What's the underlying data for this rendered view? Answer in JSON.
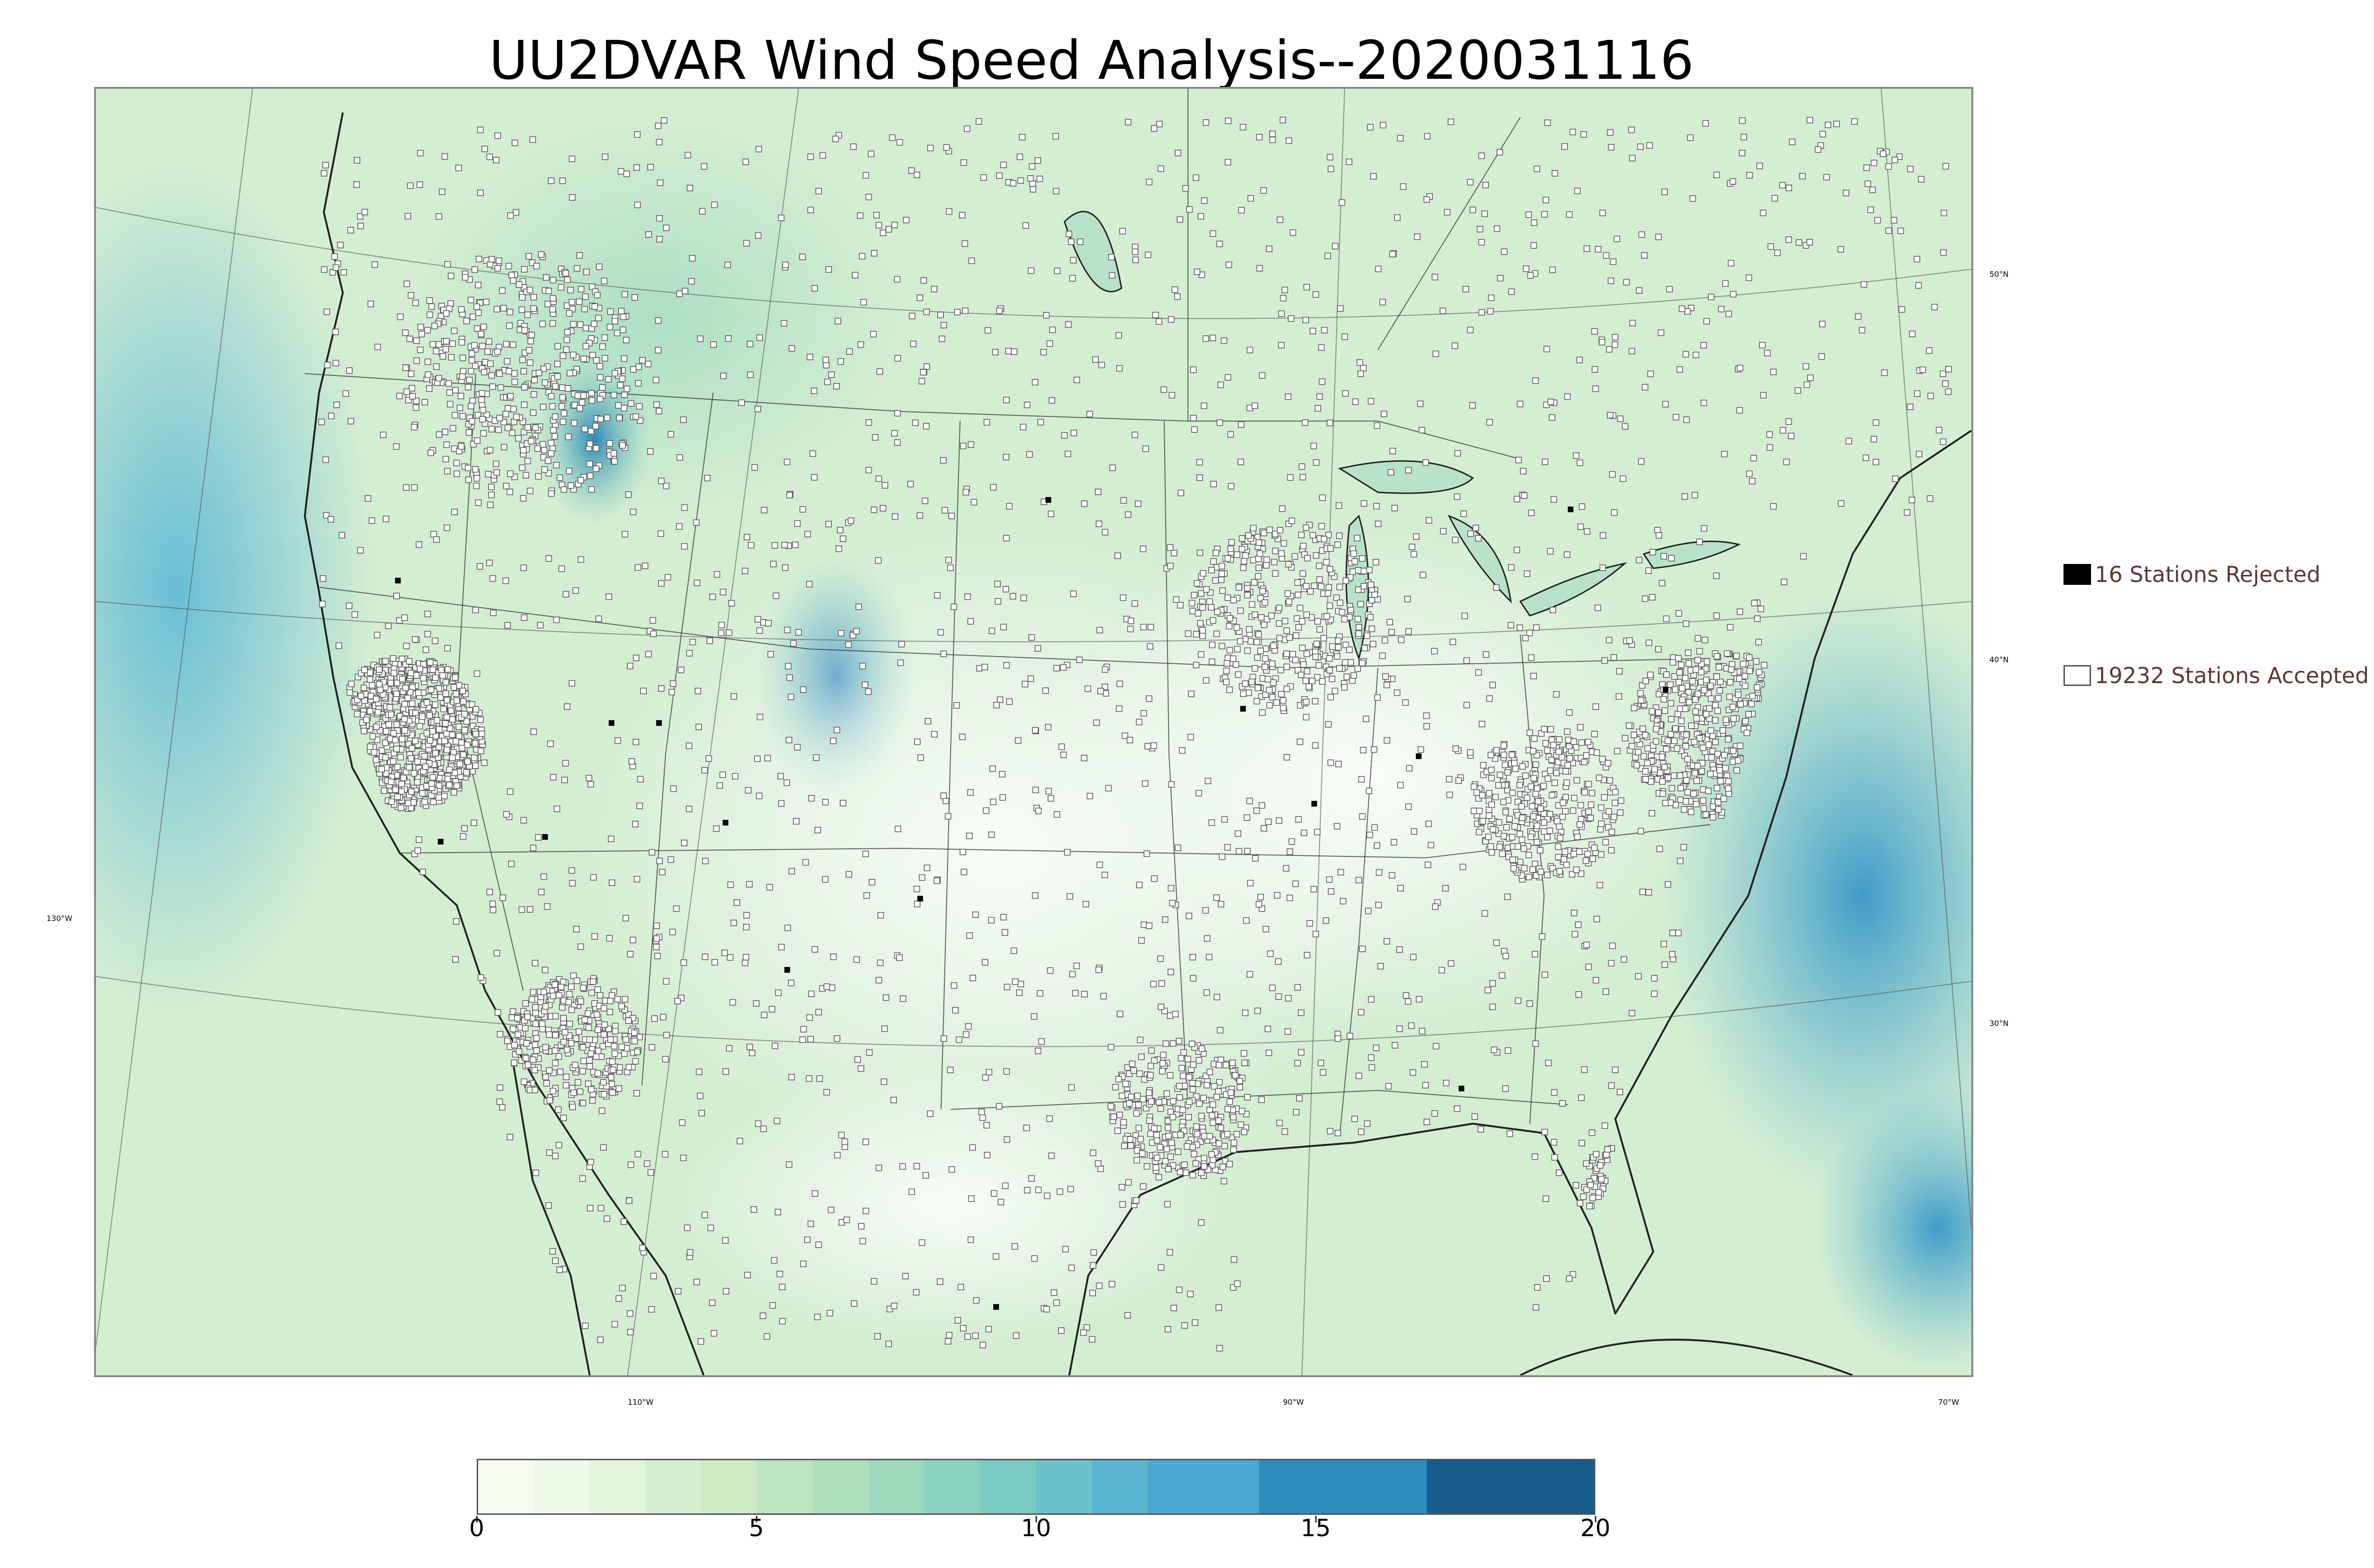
{
  "title": "UU2DVAR Wind Speed Analysis--2020031116",
  "legend": {
    "rejected_label": "16 Stations Rejected",
    "rejected_count": 16,
    "accepted_label": "19232 Stations Accepted",
    "accepted_count": 19232
  },
  "lat_labels": [
    "50°N",
    "40°N",
    "30°N"
  ],
  "lon_labels": [
    "130°W",
    "110°W",
    "90°W",
    "70°W"
  ],
  "colorbar": {
    "ticks": [
      "0",
      "5",
      "10",
      "15",
      "20"
    ],
    "min": 0,
    "max": 20,
    "segments": [
      {
        "from": 0,
        "to": 1,
        "color": "#f7fcf0"
      },
      {
        "from": 1,
        "to": 2,
        "color": "#eef8e7"
      },
      {
        "from": 2,
        "to": 3,
        "color": "#e2f4dc"
      },
      {
        "from": 3,
        "to": 4,
        "color": "#d6efd0"
      },
      {
        "from": 4,
        "to": 5,
        "color": "#cbebc5"
      },
      {
        "from": 5,
        "to": 6,
        "color": "#bde5bf"
      },
      {
        "from": 6,
        "to": 7,
        "color": "#addfbb"
      },
      {
        "from": 7,
        "to": 8,
        "color": "#9cd9bd"
      },
      {
        "from": 8,
        "to": 9,
        "color": "#8cd2c0"
      },
      {
        "from": 9,
        "to": 10,
        "color": "#7ccac4"
      },
      {
        "from": 10,
        "to": 11,
        "color": "#6cc2ca"
      },
      {
        "from": 11,
        "to": 12,
        "color": "#5ab6d0"
      },
      {
        "from": 12,
        "to": 14,
        "color": "#4aa8d2"
      },
      {
        "from": 14,
        "to": 17,
        "color": "#2b8cbe"
      },
      {
        "from": 17,
        "to": 20,
        "color": "#195d8c"
      }
    ]
  },
  "colors": {
    "land_bg": "#dff2d8",
    "ocean_bg": "#c5e8cf",
    "high_wind": "#2b8cbe",
    "station_accepted": "#ffffff",
    "station_rejected": "#000000"
  }
}
